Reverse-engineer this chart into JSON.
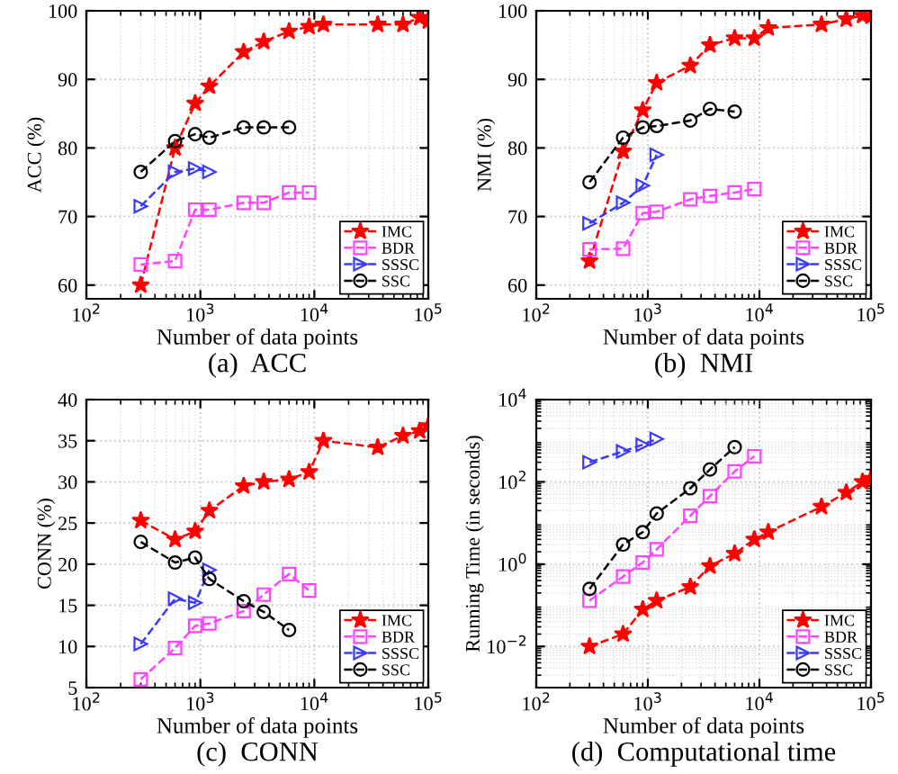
{
  "chart_data": [
    {
      "type": "line",
      "title": "(a)  ACC",
      "xlabel": "Number of data points",
      "ylabel": "ACC (%)",
      "log": "x",
      "grid": true,
      "legend": "bottom right",
      "line_style": "dashed",
      "xlim": [
        100,
        100000
      ],
      "xticks": [
        {
          "value": 100,
          "label": "10$^{2}$"
        },
        {
          "value": 1000,
          "label": "10$^{3}$"
        },
        {
          "value": 10000,
          "label": "10$^{4}$"
        },
        {
          "value": 100000,
          "label": "10$^{5}$"
        }
      ],
      "ylim": [
        58,
        100
      ],
      "yticks": [
        60,
        70,
        80,
        90,
        100
      ],
      "series": [
        {
          "name": "IMC",
          "color": "#ff0000",
          "marker": "star",
          "x": [
            300,
            600,
            900,
            1200,
            2400,
            3600,
            6000,
            9000,
            12000,
            36000,
            60000,
            84000,
            100000
          ],
          "values": [
            60,
            80,
            86.5,
            89,
            94,
            95.5,
            97,
            97.7,
            98,
            98,
            98,
            99,
            98.5
          ]
        },
        {
          "name": "BDR",
          "color": "#ff44ff",
          "marker": "square",
          "x": [
            300,
            600,
            900,
            1200,
            2400,
            3600,
            6000,
            9000
          ],
          "values": [
            63,
            63.5,
            71,
            71,
            72,
            72,
            73.5,
            73.5
          ]
        },
        {
          "name": "SSSC",
          "color": "#3a3aff",
          "marker": "triangle",
          "x": [
            300,
            600,
            900,
            1200
          ],
          "values": [
            71.5,
            76.5,
            77,
            76.5
          ]
        },
        {
          "name": "SSC",
          "color": "#000000",
          "marker": "circle",
          "x": [
            300,
            600,
            900,
            1200,
            2400,
            3600,
            6000
          ],
          "values": [
            76.5,
            81,
            82,
            81.5,
            83,
            83,
            83
          ]
        }
      ]
    },
    {
      "type": "line",
      "title": "(b)  NMI",
      "xlabel": "Number of data points",
      "ylabel": "NMI (%)",
      "log": "x",
      "grid": true,
      "legend": "bottom right",
      "line_style": "dashed",
      "xlim": [
        100,
        100000
      ],
      "xticks": [
        {
          "value": 100,
          "label": "10$^{2}$"
        },
        {
          "value": 1000,
          "label": "10$^{3}$"
        },
        {
          "value": 10000,
          "label": "10$^{4}$"
        },
        {
          "value": 100000,
          "label": "10$^{5}$"
        }
      ],
      "ylim": [
        58,
        100
      ],
      "yticks": [
        60,
        70,
        80,
        90,
        100
      ],
      "series": [
        {
          "name": "IMC",
          "color": "#ff0000",
          "marker": "star",
          "x": [
            300,
            600,
            900,
            1200,
            2400,
            3600,
            6000,
            9000,
            12000,
            36000,
            60000,
            84000,
            100000
          ],
          "values": [
            63.5,
            79.5,
            85.5,
            89.5,
            92,
            95,
            96,
            96,
            97.5,
            98,
            98.8,
            99.3,
            99.2
          ]
        },
        {
          "name": "BDR",
          "color": "#ff44ff",
          "marker": "square",
          "x": [
            300,
            600,
            900,
            1200,
            2400,
            3600,
            6000,
            9000
          ],
          "values": [
            65.2,
            65.3,
            70.5,
            70.7,
            72.5,
            73,
            73.5,
            74
          ]
        },
        {
          "name": "SSSC",
          "color": "#3a3aff",
          "marker": "triangle",
          "x": [
            300,
            600,
            900,
            1200
          ],
          "values": [
            69,
            72,
            74.5,
            79
          ]
        },
        {
          "name": "SSC",
          "color": "#000000",
          "marker": "circle",
          "x": [
            300,
            600,
            900,
            1200,
            2400,
            3600,
            6000
          ],
          "values": [
            75,
            81.5,
            83,
            83.2,
            84,
            85.7,
            85.3
          ]
        }
      ]
    },
    {
      "type": "line",
      "title": "(c)  CONN",
      "xlabel": "Number of data points",
      "ylabel": "CONN (%)",
      "log": "x",
      "grid": true,
      "legend": "bottom right",
      "line_style": "dashed",
      "xlim": [
        100,
        100000
      ],
      "xticks": [
        {
          "value": 100,
          "label": "10$^{2}$"
        },
        {
          "value": 1000,
          "label": "10$^{3}$"
        },
        {
          "value": 10000,
          "label": "10$^{4}$"
        },
        {
          "value": 100000,
          "label": "10$^{5}$"
        }
      ],
      "ylim": [
        5,
        40
      ],
      "yticks": [
        5,
        10,
        15,
        20,
        25,
        30,
        35,
        40
      ],
      "series": [
        {
          "name": "IMC",
          "color": "#ff0000",
          "marker": "star",
          "x": [
            300,
            600,
            900,
            1200,
            2400,
            3600,
            6000,
            9000,
            12000,
            36000,
            60000,
            84000,
            100000
          ],
          "values": [
            25.3,
            23,
            24,
            26.5,
            29.5,
            30,
            30.3,
            31.2,
            35,
            34.2,
            35.6,
            36.2,
            36.8
          ]
        },
        {
          "name": "BDR",
          "color": "#ff44ff",
          "marker": "square",
          "x": [
            300,
            600,
            900,
            1200,
            2400,
            3600,
            6000,
            9000
          ],
          "values": [
            6,
            9.8,
            12.5,
            12.8,
            14.3,
            16.3,
            18.8,
            16.8
          ]
        },
        {
          "name": "SSSC",
          "color": "#3a3aff",
          "marker": "triangle",
          "x": [
            300,
            600,
            900,
            1200
          ],
          "values": [
            10.3,
            15.8,
            15.3,
            19.3
          ]
        },
        {
          "name": "SSC",
          "color": "#000000",
          "marker": "circle",
          "x": [
            300,
            600,
            900,
            1200,
            2400,
            3600,
            6000
          ],
          "values": [
            22.7,
            20.2,
            20.8,
            18.2,
            15.5,
            14.2,
            12
          ]
        }
      ]
    },
    {
      "type": "line",
      "title": "(d)  Computational time",
      "xlabel": "Number of data points",
      "ylabel": "Running Time (in seconds)",
      "log": "xy",
      "grid": true,
      "legend": "bottom right",
      "line_style": "dashed",
      "xlim": [
        100,
        100000
      ],
      "xticks": [
        {
          "value": 100,
          "label": "10$^{2}$"
        },
        {
          "value": 1000,
          "label": "10$^{3}$"
        },
        {
          "value": 10000,
          "label": "10$^{4}$"
        },
        {
          "value": 100000,
          "label": "10$^{5}$"
        }
      ],
      "ylim": [
        0.001,
        10000
      ],
      "yticks": [
        {
          "value": 0.01,
          "label": "10$^{−2}$"
        },
        {
          "value": 1,
          "label": "10$^{0}$"
        },
        {
          "value": 100,
          "label": "10$^{2}$"
        },
        {
          "value": 10000,
          "label": "10$^{4}$"
        }
      ],
      "series": [
        {
          "name": "IMC",
          "color": "#ff0000",
          "marker": "star",
          "x": [
            300,
            600,
            900,
            1200,
            2400,
            3600,
            6000,
            9000,
            12000,
            36000,
            60000,
            84000,
            100000
          ],
          "values": [
            0.01,
            0.02,
            0.08,
            0.13,
            0.28,
            0.9,
            1.8,
            4,
            6,
            25,
            55,
            100,
            120
          ]
        },
        {
          "name": "BDR",
          "color": "#ff44ff",
          "marker": "square",
          "x": [
            300,
            600,
            900,
            1200,
            2400,
            3600,
            6000,
            9000
          ],
          "values": [
            0.13,
            0.5,
            1.1,
            2.3,
            15,
            45,
            180,
            420
          ]
        },
        {
          "name": "SSSC",
          "color": "#3a3aff",
          "marker": "triangle",
          "x": [
            300,
            600,
            900,
            1200
          ],
          "values": [
            300,
            550,
            800,
            1100
          ]
        },
        {
          "name": "SSC",
          "color": "#000000",
          "marker": "circle",
          "x": [
            300,
            600,
            900,
            1200,
            2400,
            3600,
            6000
          ],
          "values": [
            0.25,
            3,
            6,
            17,
            70,
            200,
            700
          ]
        }
      ]
    }
  ]
}
